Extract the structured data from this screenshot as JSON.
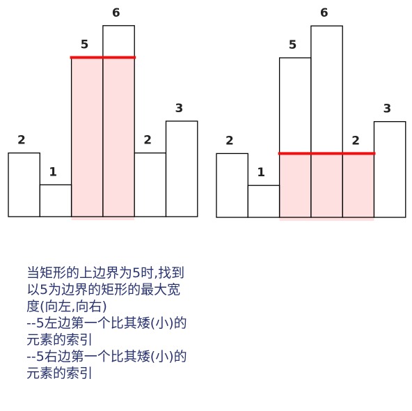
{
  "chart_data": [
    {
      "type": "bar",
      "values": [
        2,
        1,
        5,
        6,
        2,
        3
      ],
      "labels": [
        "2",
        "1",
        "5",
        "6",
        "2",
        "3"
      ],
      "highlight": {
        "bars": [
          2,
          3
        ],
        "height": 5
      },
      "colors": {
        "bar_stroke": "#000000",
        "bar_fill": "#ffffff",
        "highlight_fill": "#ffe0e0",
        "line": "#ee1111"
      }
    },
    {
      "type": "bar",
      "values": [
        2,
        1,
        5,
        6,
        2,
        3
      ],
      "labels": [
        "2",
        "1",
        "5",
        "6",
        "2",
        "3"
      ],
      "highlight": {
        "bars": [
          2,
          3,
          4
        ],
        "height": 2
      },
      "colors": {
        "bar_stroke": "#000000",
        "bar_fill": "#ffffff",
        "highlight_fill": "#ffe0e0",
        "line": "#ee1111"
      }
    }
  ],
  "caption": {
    "lines": [
      "当矩形的上边界为5时,找到",
      "以5为边界的矩形的最大宽",
      "度(向左,向右)",
      "--5左边第一个比其矮(小)的",
      "元素的索引",
      "--5右边第一个比其矮(小)的",
      "元素的索引"
    ]
  }
}
